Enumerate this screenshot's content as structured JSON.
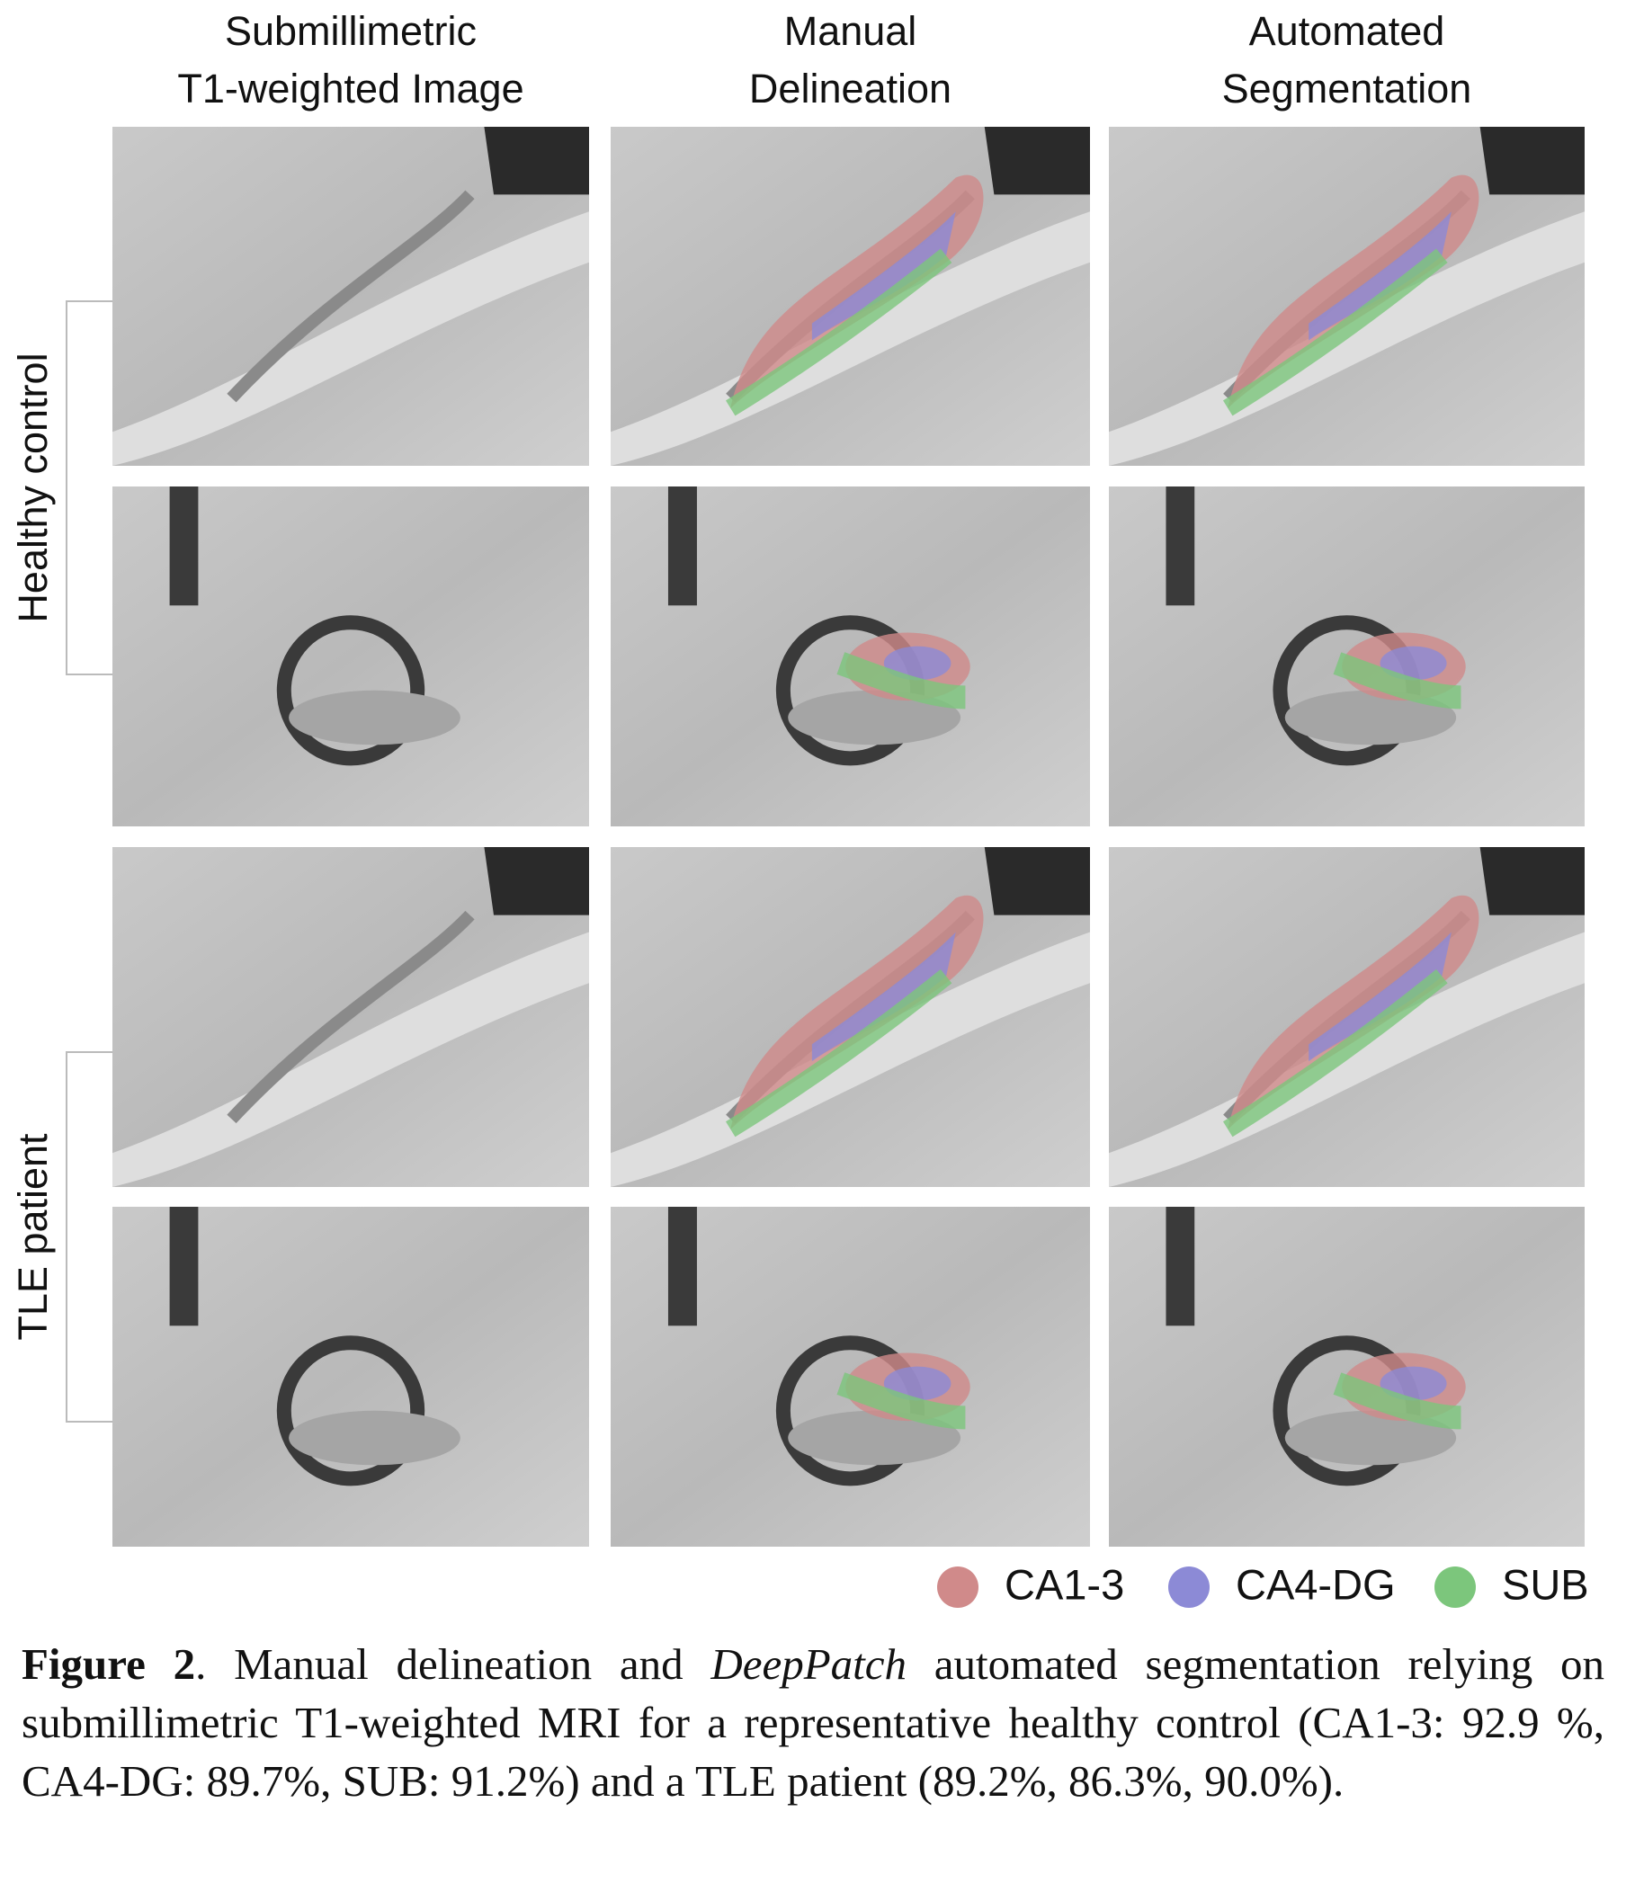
{
  "figure": {
    "column_headers": [
      [
        "Submillimetric",
        "T1-weighted Image"
      ],
      [
        "Manual",
        "Delineation"
      ],
      [
        "Automated",
        "Segmentation"
      ]
    ],
    "row_groups": [
      "Healthy control",
      "TLE patient"
    ],
    "legend": [
      {
        "name": "CA1-3",
        "color": "#d08a8a"
      },
      {
        "name": "CA4-DG",
        "color": "#8c8ad6"
      },
      {
        "name": "SUB",
        "color": "#7cc67c"
      }
    ],
    "caption": {
      "label": "Figure 2",
      "parts": [
        ". Manual delineation and ",
        "DeepPatch",
        " automated segmentation relying on submillimetric T1-weighted MRI for a representative healthy control (CA1-3: 92.9 %, CA4-DG: 89.7%, SUB: 91.2%) and a TLE patient (89.2%, 86.3%, 90.0%)."
      ]
    }
  }
}
